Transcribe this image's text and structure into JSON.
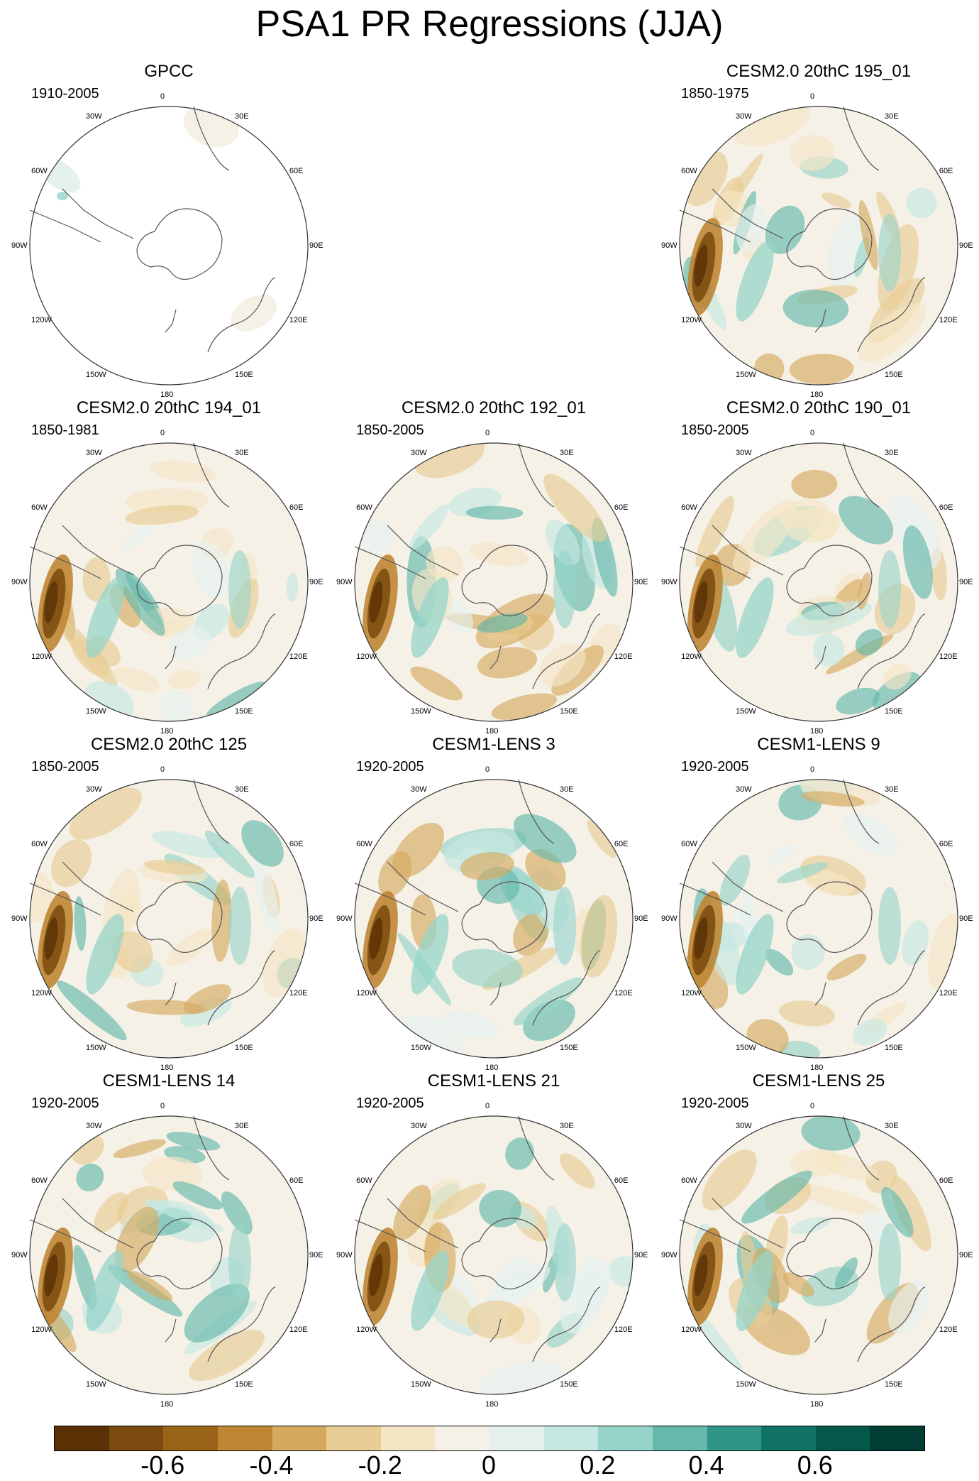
{
  "title": "PSA1 PR Regressions (JJA)",
  "lon_labels": {
    "n": "0",
    "nne": "30E",
    "ene": "60E",
    "e": "90E",
    "ese": "120E",
    "sse": "150E",
    "s": "180",
    "ssw": "150W",
    "wsw": "120W",
    "w": "90W",
    "wnw": "60W",
    "nnw": "30W"
  },
  "panels": [
    {
      "title": "GPCC",
      "period": "1910-2005",
      "style": "obs"
    },
    {
      "title": "CESM2.0 20thC 195_01",
      "period": "1850-1975",
      "style": "model"
    },
    {
      "title": "CESM2.0 20thC 194_01",
      "period": "1850-1981",
      "style": "model"
    },
    {
      "title": "CESM2.0 20thC 192_01",
      "period": "1850-2005",
      "style": "model"
    },
    {
      "title": "CESM2.0 20thC 190_01",
      "period": "1850-2005",
      "style": "model"
    },
    {
      "title": "CESM2.0 20thC 125",
      "period": "1850-2005",
      "style": "model"
    },
    {
      "title": "CESM1-LENS 3",
      "period": "1920-2005",
      "style": "model"
    },
    {
      "title": "CESM1-LENS 9",
      "period": "1920-2005",
      "style": "model"
    },
    {
      "title": "CESM1-LENS 14",
      "period": "1920-2005",
      "style": "model"
    },
    {
      "title": "CESM1-LENS 21",
      "period": "1920-2005",
      "style": "model"
    },
    {
      "title": "CESM1-LENS 25",
      "period": "1920-2005",
      "style": "model"
    }
  ],
  "colorbar": {
    "colors": [
      "#5a3004",
      "#7a4a0e",
      "#9a6418",
      "#bf8634",
      "#d5aa60",
      "#e8cd94",
      "#f4e6c4",
      "#f5f1e7",
      "#e5f1ef",
      "#c4e8e2",
      "#96d4c9",
      "#64b9ab",
      "#2f9587",
      "#117264",
      "#03574b",
      "#003d32"
    ],
    "labels": [
      "-0.6",
      "-0.4",
      "-0.2",
      "0",
      "0.2",
      "0.4",
      "0.6"
    ]
  }
}
